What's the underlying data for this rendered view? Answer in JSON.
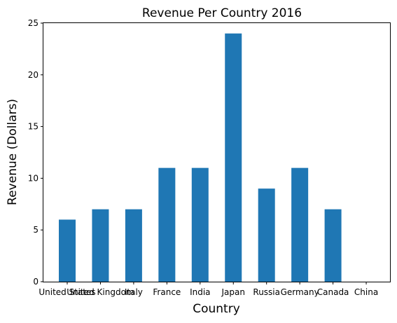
{
  "chart_data": {
    "type": "bar",
    "title": "Revenue Per Country 2016",
    "xlabel": "Country",
    "ylabel": "Revenue (Dollars)",
    "categories": [
      "United States",
      "United Kingdom",
      "Italy",
      "France",
      "India",
      "Japan",
      "Russia",
      "Germany",
      "Canada",
      "China"
    ],
    "values": [
      6,
      7,
      7,
      11,
      11,
      24,
      9,
      11,
      7,
      0
    ],
    "ylim": [
      0,
      25
    ],
    "yticks": [
      0,
      5,
      10,
      15,
      20,
      25
    ],
    "grid": false,
    "bar_color": "#1f77b4"
  }
}
